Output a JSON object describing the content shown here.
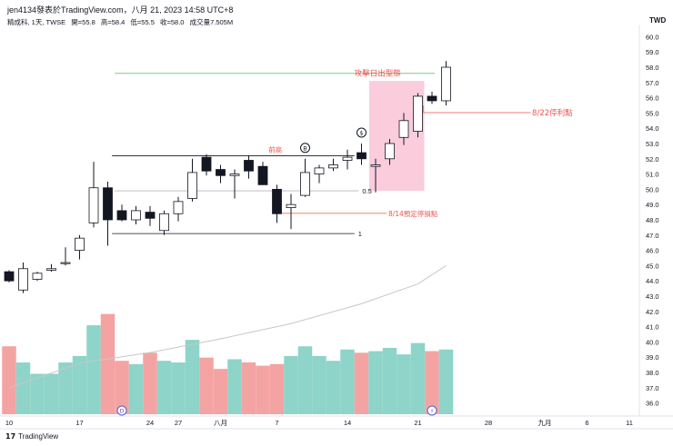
{
  "header": {
    "publisher_line": "jen4134發表於TradingView.com，八月 21, 2023 14:58 UTC+8",
    "symbol": "精成科, 1天, TWSE",
    "ohlc": {
      "open_label": "開=55.8",
      "high_label": "高=58.4",
      "low_label": "低=55.5",
      "close_label": "收=58.0",
      "volume_label": "成交量7.505M"
    }
  },
  "currency": "TWD",
  "footer": {
    "logo_glyph": "17",
    "brand": "TradingView"
  },
  "colors": {
    "up": "#ffffff",
    "down": "#131722",
    "wick": "#131722",
    "vol_up": "#8ed4c8",
    "vol_down": "#f4a3a3",
    "annotation": "#ef5350",
    "attack_line": "#81c784",
    "highlight_box": "#f8bbd0",
    "ma": "#c7c7c7",
    "grid": "#e0e3eb"
  },
  "chart_data": {
    "type": "candlestick",
    "ylim": [
      35.5,
      60.5
    ],
    "y_ticks": [
      "36.0",
      "37.0",
      "38.0",
      "39.0",
      "40.0",
      "41.0",
      "42.0",
      "43.0",
      "44.0",
      "45.0",
      "46.0",
      "47.0",
      "48.0",
      "49.0",
      "50.0",
      "51.0",
      "52.0",
      "53.0",
      "54.0",
      "55.0",
      "56.0",
      "57.0",
      "58.0",
      "59.0",
      "60.0"
    ],
    "x_tick_labels": [
      {
        "label": "10",
        "index": 0
      },
      {
        "label": "17",
        "index": 5
      },
      {
        "label": "24",
        "index": 10
      },
      {
        "label": "27",
        "index": 12
      },
      {
        "label": "八月",
        "index": 15
      },
      {
        "label": "7",
        "index": 19
      },
      {
        "label": "14",
        "index": 24
      },
      {
        "label": "21",
        "index": 29
      },
      {
        "label": "28",
        "index": 34
      },
      {
        "label": "九月",
        "index": 38
      },
      {
        "label": "6",
        "index": 41
      },
      {
        "label": "11",
        "index": 44
      }
    ],
    "candles": [
      {
        "o": 44.6,
        "h": 44.7,
        "l": 43.9,
        "c": 44.0,
        "v": 0.42
      },
      {
        "o": 43.4,
        "h": 45.2,
        "l": 43.2,
        "c": 44.8,
        "v": 0.32
      },
      {
        "o": 44.1,
        "h": 44.6,
        "l": 44.0,
        "c": 44.5,
        "v": 0.25
      },
      {
        "o": 44.7,
        "h": 45.1,
        "l": 44.6,
        "c": 44.8,
        "v": 0.25
      },
      {
        "o": 45.2,
        "h": 46.2,
        "l": 45.0,
        "c": 45.2,
        "v": 0.32
      },
      {
        "o": 46.0,
        "h": 47.0,
        "l": 45.4,
        "c": 46.8,
        "v": 0.36
      },
      {
        "o": 47.8,
        "h": 51.8,
        "l": 47.5,
        "c": 50.1,
        "v": 0.55
      },
      {
        "o": 50.1,
        "h": 50.5,
        "l": 46.3,
        "c": 48.0,
        "v": 0.62
      },
      {
        "o": 48.6,
        "h": 49.0,
        "l": 47.9,
        "c": 48.0,
        "v": 0.33
      },
      {
        "o": 48.0,
        "h": 48.9,
        "l": 47.7,
        "c": 48.6,
        "v": 0.31
      },
      {
        "o": 48.5,
        "h": 48.9,
        "l": 47.6,
        "c": 48.1,
        "v": 0.38
      },
      {
        "o": 47.3,
        "h": 48.6,
        "l": 47.0,
        "c": 48.4,
        "v": 0.33
      },
      {
        "o": 48.4,
        "h": 49.5,
        "l": 47.9,
        "c": 49.2,
        "v": 0.32
      },
      {
        "o": 49.4,
        "h": 52.0,
        "l": 49.2,
        "c": 51.1,
        "v": 0.46
      },
      {
        "o": 52.1,
        "h": 52.3,
        "l": 50.9,
        "c": 51.2,
        "v": 0.35
      },
      {
        "o": 51.3,
        "h": 51.6,
        "l": 50.4,
        "c": 50.9,
        "v": 0.28
      },
      {
        "o": 50.9,
        "h": 51.3,
        "l": 49.4,
        "c": 51.0,
        "v": 0.34
      },
      {
        "o": 51.9,
        "h": 52.2,
        "l": 50.7,
        "c": 51.2,
        "v": 0.32
      },
      {
        "o": 51.5,
        "h": 51.8,
        "l": 50.3,
        "c": 50.3,
        "v": 0.3
      },
      {
        "o": 50.0,
        "h": 50.3,
        "l": 47.8,
        "c": 48.4,
        "v": 0.31
      },
      {
        "o": 48.8,
        "h": 49.7,
        "l": 47.4,
        "c": 49.0,
        "v": 0.36
      },
      {
        "o": 49.6,
        "h": 52.0,
        "l": 49.5,
        "c": 51.1,
        "v": 0.42
      },
      {
        "o": 51.0,
        "h": 51.6,
        "l": 50.4,
        "c": 51.4,
        "v": 0.36
      },
      {
        "o": 51.4,
        "h": 52.0,
        "l": 51.2,
        "c": 51.6,
        "v": 0.33
      },
      {
        "o": 51.9,
        "h": 52.6,
        "l": 51.3,
        "c": 52.1,
        "v": 0.4
      },
      {
        "o": 52.4,
        "h": 53.0,
        "l": 51.6,
        "c": 52.0,
        "v": 0.38
      },
      {
        "o": 51.5,
        "h": 52.0,
        "l": 49.8,
        "c": 51.6,
        "v": 0.39
      },
      {
        "o": 52.0,
        "h": 53.3,
        "l": 51.6,
        "c": 53.0,
        "v": 0.41
      },
      {
        "o": 53.4,
        "h": 55.0,
        "l": 52.9,
        "c": 54.5,
        "v": 0.37
      },
      {
        "o": 53.8,
        "h": 56.3,
        "l": 53.4,
        "c": 56.1,
        "v": 0.44
      },
      {
        "o": 56.1,
        "h": 56.4,
        "l": 55.6,
        "c": 55.8,
        "v": 0.39
      },
      {
        "o": 55.8,
        "h": 58.4,
        "l": 55.5,
        "c": 58.0,
        "v": 0.4
      }
    ],
    "ma_points": [
      [
        0,
        37.0
      ],
      [
        5,
        38.6
      ],
      [
        10,
        39.3
      ],
      [
        15,
        40.2
      ],
      [
        20,
        41.2
      ],
      [
        25,
        42.5
      ],
      [
        29,
        43.8
      ],
      [
        31,
        45.0
      ]
    ],
    "fib_levels": [
      {
        "label": "0",
        "price": 52.2
      },
      {
        "label": "0.5",
        "price": 49.9
      },
      {
        "label": "1",
        "price": 47.1
      }
    ],
    "annotations": {
      "attack_label": "攻擊日出型態",
      "attack_price": 57.6,
      "prev_high_label": "前高",
      "stop_loss_label": "8/14預定停損點",
      "stop_loss_price": 48.9,
      "take_profit_label": "8/22停利點",
      "take_profit_price": 55.5
    },
    "highlight_box": {
      "from_index": 26,
      "to_index": 29,
      "top": 57.1,
      "bottom": 49.9
    },
    "markers": [
      {
        "index": 21,
        "text": "B",
        "kind": "top"
      },
      {
        "index": 25,
        "text": "$",
        "kind": "top"
      },
      {
        "index": 8,
        "text": "D",
        "kind": "bottom"
      },
      {
        "index": 30,
        "text": "⚡",
        "kind": "bottom"
      }
    ]
  }
}
